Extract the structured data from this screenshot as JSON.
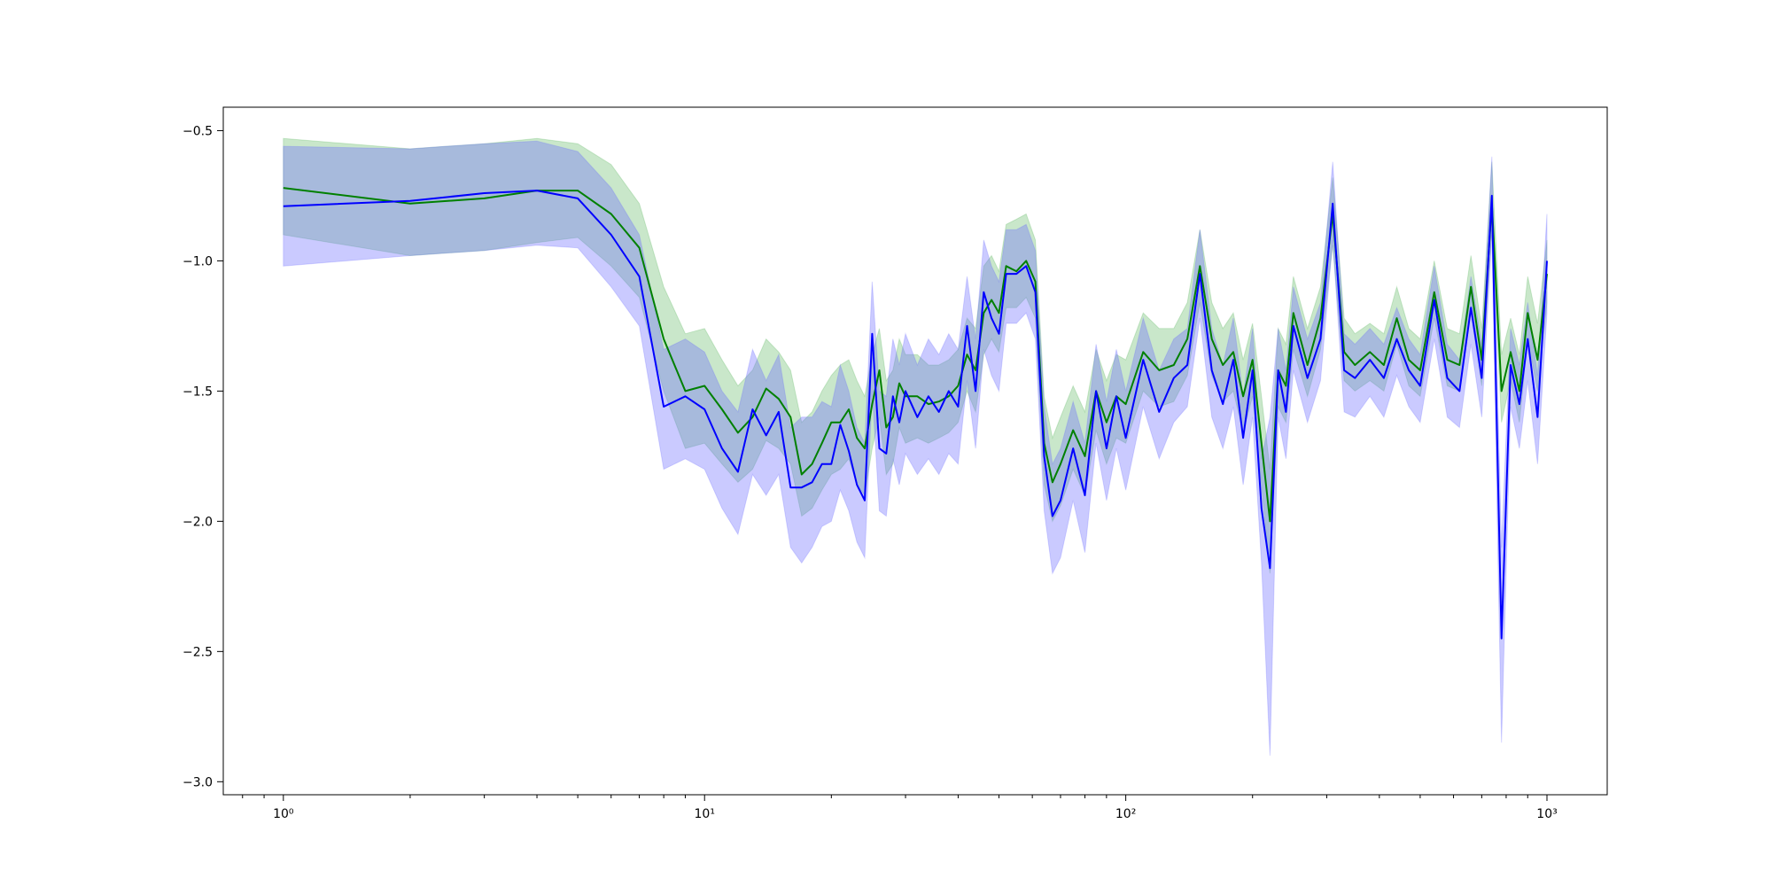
{
  "chart_data": {
    "type": "line",
    "xscale": "log",
    "xlim": [
      0.72,
      1390
    ],
    "ylim": [
      -3.05,
      -0.41
    ],
    "grid": false,
    "x_ticks": [
      {
        "value": 1,
        "label": "10⁰"
      },
      {
        "value": 10,
        "label": "10¹"
      },
      {
        "value": 100,
        "label": "10²"
      },
      {
        "value": 1000,
        "label": "10³"
      }
    ],
    "y_ticks": [
      {
        "value": -0.5,
        "label": "−0.5"
      },
      {
        "value": -1.0,
        "label": "−1.0"
      },
      {
        "value": -1.5,
        "label": "−1.5"
      },
      {
        "value": -2.0,
        "label": "−2.0"
      },
      {
        "value": -2.5,
        "label": "−2.5"
      },
      {
        "value": -3.0,
        "label": "−3.0"
      }
    ],
    "series": [
      {
        "color": "#008000",
        "band_color": "#4CAF50",
        "band_opacity": 0.3,
        "x": [
          1,
          2,
          3,
          4,
          5,
          6,
          7,
          8,
          9,
          10,
          11,
          12,
          13,
          14,
          15,
          16,
          17,
          18,
          19,
          20,
          21,
          22,
          23,
          24,
          25,
          26,
          27,
          28,
          29,
          30,
          32,
          34,
          36,
          38,
          40,
          42,
          44,
          46,
          48,
          50,
          52,
          55,
          58,
          61,
          64,
          67,
          70,
          75,
          80,
          85,
          90,
          95,
          100,
          110,
          120,
          130,
          140,
          150,
          160,
          170,
          180,
          190,
          200,
          210,
          220,
          230,
          240,
          250,
          270,
          290,
          310,
          330,
          350,
          380,
          410,
          440,
          470,
          500,
          540,
          580,
          620,
          660,
          700,
          740,
          780,
          820,
          860,
          900,
          950,
          1000
        ],
        "y": [
          -0.72,
          -0.78,
          -0.76,
          -0.73,
          -0.73,
          -0.82,
          -0.95,
          -1.3,
          -1.5,
          -1.48,
          -1.57,
          -1.66,
          -1.6,
          -1.49,
          -1.53,
          -1.6,
          -1.82,
          -1.78,
          -1.7,
          -1.62,
          -1.62,
          -1.57,
          -1.68,
          -1.72,
          -1.55,
          -1.42,
          -1.64,
          -1.6,
          -1.47,
          -1.52,
          -1.52,
          -1.55,
          -1.54,
          -1.52,
          -1.48,
          -1.36,
          -1.42,
          -1.2,
          -1.15,
          -1.2,
          -1.02,
          -1.04,
          -1.0,
          -1.08,
          -1.7,
          -1.85,
          -1.78,
          -1.65,
          -1.75,
          -1.5,
          -1.62,
          -1.52,
          -1.55,
          -1.35,
          -1.42,
          -1.4,
          -1.3,
          -1.02,
          -1.3,
          -1.4,
          -1.35,
          -1.52,
          -1.38,
          -1.7,
          -2.0,
          -1.42,
          -1.48,
          -1.2,
          -1.4,
          -1.22,
          -0.82,
          -1.35,
          -1.4,
          -1.35,
          -1.4,
          -1.22,
          -1.38,
          -1.42,
          -1.12,
          -1.38,
          -1.4,
          -1.1,
          -1.38,
          -0.78,
          -1.5,
          -1.35,
          -1.5,
          -1.2,
          -1.38,
          -1.05
        ],
        "lower": [
          -0.9,
          -0.98,
          -0.96,
          -0.93,
          -0.91,
          -1.02,
          -1.14,
          -1.5,
          -1.72,
          -1.7,
          -1.78,
          -1.85,
          -1.8,
          -1.69,
          -1.72,
          -1.78,
          -1.98,
          -1.95,
          -1.88,
          -1.82,
          -1.8,
          -1.76,
          -1.86,
          -1.9,
          -1.72,
          -1.6,
          -1.82,
          -1.78,
          -1.64,
          -1.7,
          -1.68,
          -1.7,
          -1.68,
          -1.66,
          -1.62,
          -1.5,
          -1.58,
          -1.36,
          -1.3,
          -1.35,
          -1.18,
          -1.18,
          -1.14,
          -1.22,
          -1.86,
          -2.0,
          -1.94,
          -1.8,
          -1.9,
          -1.65,
          -1.78,
          -1.68,
          -1.7,
          -1.5,
          -1.56,
          -1.54,
          -1.44,
          -1.16,
          -1.44,
          -1.54,
          -1.5,
          -1.66,
          -1.52,
          -1.86,
          -2.2,
          -1.56,
          -1.62,
          -1.34,
          -1.52,
          -1.34,
          -0.94,
          -1.46,
          -1.5,
          -1.46,
          -1.5,
          -1.32,
          -1.48,
          -1.52,
          -1.22,
          -1.48,
          -1.5,
          -1.2,
          -1.48,
          -0.88,
          -1.62,
          -1.46,
          -1.62,
          -1.3,
          -1.5,
          -1.16
        ],
        "upper": [
          -0.53,
          -0.57,
          -0.55,
          -0.53,
          -0.55,
          -0.63,
          -0.78,
          -1.1,
          -1.28,
          -1.26,
          -1.38,
          -1.48,
          -1.42,
          -1.3,
          -1.35,
          -1.42,
          -1.62,
          -1.58,
          -1.5,
          -1.44,
          -1.4,
          -1.38,
          -1.46,
          -1.52,
          -1.36,
          -1.26,
          -1.46,
          -1.42,
          -1.3,
          -1.36,
          -1.36,
          -1.4,
          -1.4,
          -1.38,
          -1.34,
          -1.22,
          -1.26,
          -1.02,
          -0.98,
          -1.04,
          -0.86,
          -0.84,
          -0.82,
          -0.92,
          -1.52,
          -1.68,
          -1.6,
          -1.48,
          -1.58,
          -1.34,
          -1.46,
          -1.36,
          -1.38,
          -1.2,
          -1.26,
          -1.26,
          -1.16,
          -0.88,
          -1.16,
          -1.26,
          -1.2,
          -1.38,
          -1.24,
          -1.52,
          -1.8,
          -1.26,
          -1.32,
          -1.06,
          -1.26,
          -1.1,
          -0.68,
          -1.22,
          -1.28,
          -1.24,
          -1.28,
          -1.1,
          -1.26,
          -1.3,
          -1.0,
          -1.26,
          -1.28,
          -0.98,
          -1.26,
          -0.62,
          -1.36,
          -1.22,
          -1.36,
          -1.06,
          -1.24,
          -0.92
        ]
      },
      {
        "color": "#0000FF",
        "band_color": "#6666FF",
        "band_opacity": 0.35,
        "x": [
          1,
          2,
          3,
          4,
          5,
          6,
          7,
          8,
          9,
          10,
          11,
          12,
          13,
          14,
          15,
          16,
          17,
          18,
          19,
          20,
          21,
          22,
          23,
          24,
          25,
          26,
          27,
          28,
          29,
          30,
          32,
          34,
          36,
          38,
          40,
          42,
          44,
          46,
          48,
          50,
          52,
          55,
          58,
          61,
          64,
          67,
          70,
          75,
          80,
          85,
          90,
          95,
          100,
          110,
          120,
          130,
          140,
          150,
          160,
          170,
          180,
          190,
          200,
          210,
          220,
          230,
          240,
          250,
          270,
          290,
          310,
          330,
          350,
          380,
          410,
          440,
          470,
          500,
          540,
          580,
          620,
          660,
          700,
          740,
          780,
          820,
          860,
          900,
          950,
          1000
        ],
        "y": [
          -0.79,
          -0.77,
          -0.74,
          -0.73,
          -0.76,
          -0.9,
          -1.06,
          -1.56,
          -1.52,
          -1.57,
          -1.72,
          -1.81,
          -1.57,
          -1.67,
          -1.58,
          -1.87,
          -1.87,
          -1.85,
          -1.78,
          -1.78,
          -1.63,
          -1.73,
          -1.86,
          -1.92,
          -1.28,
          -1.72,
          -1.74,
          -1.52,
          -1.62,
          -1.5,
          -1.6,
          -1.52,
          -1.58,
          -1.5,
          -1.56,
          -1.25,
          -1.5,
          -1.12,
          -1.22,
          -1.28,
          -1.05,
          -1.05,
          -1.02,
          -1.12,
          -1.75,
          -1.98,
          -1.92,
          -1.72,
          -1.9,
          -1.5,
          -1.72,
          -1.52,
          -1.68,
          -1.38,
          -1.58,
          -1.45,
          -1.4,
          -1.05,
          -1.42,
          -1.55,
          -1.38,
          -1.68,
          -1.42,
          -1.95,
          -2.18,
          -1.42,
          -1.58,
          -1.25,
          -1.45,
          -1.3,
          -0.78,
          -1.42,
          -1.45,
          -1.38,
          -1.45,
          -1.3,
          -1.42,
          -1.48,
          -1.15,
          -1.45,
          -1.5,
          -1.18,
          -1.45,
          -0.75,
          -2.45,
          -1.4,
          -1.55,
          -1.3,
          -1.6,
          -1.0
        ],
        "lower": [
          -1.02,
          -0.98,
          -0.96,
          -0.94,
          -0.95,
          -1.1,
          -1.25,
          -1.8,
          -1.76,
          -1.8,
          -1.95,
          -2.05,
          -1.82,
          -1.9,
          -1.82,
          -2.1,
          -2.16,
          -2.1,
          -2.02,
          -2.0,
          -1.88,
          -1.96,
          -2.08,
          -2.14,
          -1.5,
          -1.96,
          -1.98,
          -1.76,
          -1.86,
          -1.74,
          -1.82,
          -1.76,
          -1.82,
          -1.74,
          -1.78,
          -1.46,
          -1.72,
          -1.34,
          -1.44,
          -1.5,
          -1.24,
          -1.24,
          -1.2,
          -1.3,
          -1.96,
          -2.2,
          -2.14,
          -1.92,
          -2.12,
          -1.7,
          -1.92,
          -1.72,
          -1.88,
          -1.56,
          -1.76,
          -1.62,
          -1.56,
          -1.22,
          -1.6,
          -1.72,
          -1.56,
          -1.86,
          -1.6,
          -2.16,
          -2.9,
          -1.6,
          -1.76,
          -1.42,
          -1.62,
          -1.46,
          -0.92,
          -1.58,
          -1.6,
          -1.52,
          -1.6,
          -1.44,
          -1.56,
          -1.62,
          -1.3,
          -1.6,
          -1.64,
          -1.32,
          -1.6,
          -0.9,
          -2.85,
          -1.56,
          -1.72,
          -1.46,
          -1.78,
          -1.2
        ],
        "upper": [
          -0.56,
          -0.57,
          -0.55,
          -0.54,
          -0.58,
          -0.72,
          -0.9,
          -1.34,
          -1.3,
          -1.35,
          -1.5,
          -1.58,
          -1.34,
          -1.46,
          -1.36,
          -1.64,
          -1.6,
          -1.6,
          -1.54,
          -1.56,
          -1.4,
          -1.5,
          -1.64,
          -1.7,
          -1.08,
          -1.5,
          -1.52,
          -1.3,
          -1.4,
          -1.28,
          -1.4,
          -1.3,
          -1.36,
          -1.28,
          -1.34,
          -1.06,
          -1.3,
          -0.92,
          -1.02,
          -1.08,
          -0.88,
          -0.88,
          -0.86,
          -0.96,
          -1.56,
          -1.78,
          -1.72,
          -1.54,
          -1.7,
          -1.32,
          -1.54,
          -1.34,
          -1.5,
          -1.22,
          -1.42,
          -1.3,
          -1.26,
          -0.88,
          -1.26,
          -1.4,
          -1.22,
          -1.52,
          -1.26,
          -1.76,
          -1.6,
          -1.26,
          -1.42,
          -1.1,
          -1.3,
          -1.16,
          -0.62,
          -1.28,
          -1.32,
          -1.26,
          -1.32,
          -1.18,
          -1.3,
          -1.36,
          -1.02,
          -1.32,
          -1.38,
          -1.06,
          -1.32,
          -0.6,
          -2.1,
          -1.26,
          -1.4,
          -1.16,
          -1.44,
          -0.82
        ]
      }
    ]
  }
}
